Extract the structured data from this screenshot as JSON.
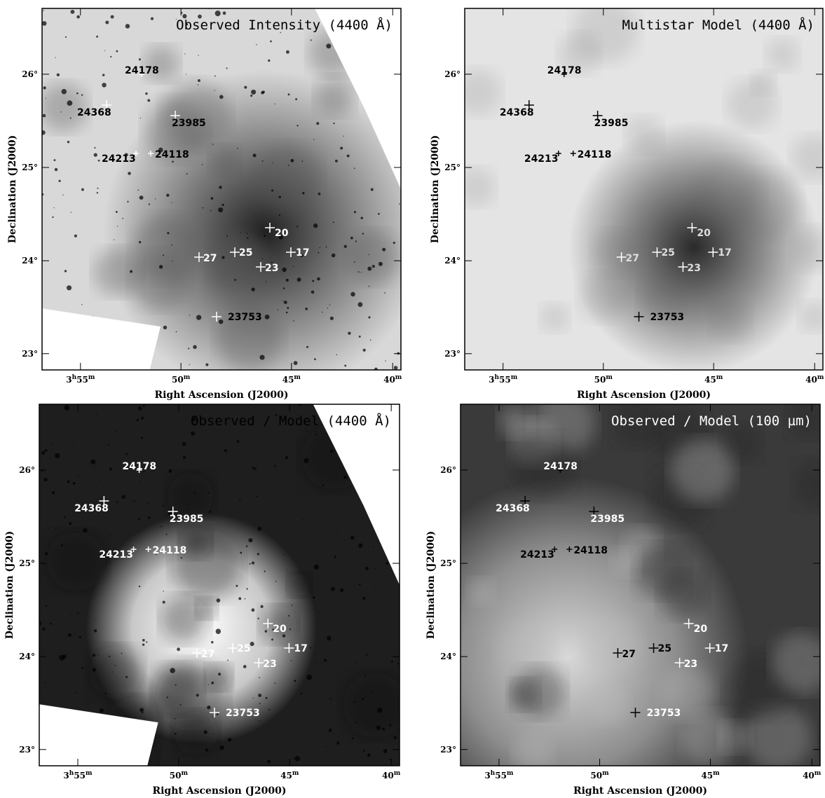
{
  "panels": [
    {
      "title": "Observed Intensity (4400 Å)",
      "x_label": "Right Ascension (J2000)",
      "y_label": "Declination (J2000)",
      "x_ticks": [
        [
          "3",
          "h",
          "55",
          "m"
        ],
        [
          "50",
          "m"
        ],
        [
          "45",
          "m"
        ],
        [
          "40",
          "m"
        ]
      ],
      "y_ticks": [
        [
          "26",
          "°"
        ],
        [
          "25",
          "°"
        ],
        [
          "24",
          "°"
        ],
        [
          "23",
          "°"
        ]
      ],
      "stars": [
        "24178",
        "24368",
        "23985",
        "24213",
        "24118",
        "20",
        "25",
        "17",
        "27",
        "23",
        "23753"
      ]
    },
    {
      "title": "Multistar Model (4400 Å)",
      "x_label": "Right Ascension (J2000)",
      "y_label": "Declination (J2000)",
      "x_ticks": [
        [
          "3",
          "h",
          "55",
          "m"
        ],
        [
          "50",
          "m"
        ],
        [
          "45",
          "m"
        ],
        [
          "40",
          "m"
        ]
      ],
      "y_ticks": [
        [
          "26",
          "°"
        ],
        [
          "25",
          "°"
        ],
        [
          "24",
          "°"
        ],
        [
          "23",
          "°"
        ]
      ],
      "stars": [
        "24178",
        "24368",
        "23985",
        "24213",
        "24118",
        "20",
        "25",
        "17",
        "27",
        "23",
        "23753"
      ]
    },
    {
      "title": "Observed / Model (4400 Å)",
      "x_label": "Right Ascension (J2000)",
      "y_label": "Declination (J2000)",
      "x_ticks": [
        [
          "3",
          "h",
          "55",
          "m"
        ],
        [
          "50",
          "m"
        ],
        [
          "45",
          "m"
        ],
        [
          "40",
          "m"
        ]
      ],
      "y_ticks": [
        [
          "26",
          "°"
        ],
        [
          "25",
          "°"
        ],
        [
          "24",
          "°"
        ],
        [
          "23",
          "°"
        ]
      ],
      "stars": [
        "24178",
        "24368",
        "23985",
        "24213",
        "24118",
        "20",
        "25",
        "17",
        "27",
        "23",
        "23753"
      ]
    },
    {
      "title": "Observed / Model (100 µm)",
      "x_label": "Right Ascension (J2000)",
      "y_label": "Declination (J2000)",
      "x_ticks": [
        [
          "3",
          "h",
          "55",
          "m"
        ],
        [
          "50",
          "m"
        ],
        [
          "45",
          "m"
        ],
        [
          "40",
          "m"
        ]
      ],
      "y_ticks": [
        [
          "26",
          "°"
        ],
        [
          "25",
          "°"
        ],
        [
          "24",
          "°"
        ],
        [
          "23",
          "°"
        ]
      ],
      "stars": [
        "24178",
        "24368",
        "23985",
        "24213",
        "24118",
        "20",
        "25",
        "17",
        "27",
        "23",
        "23753"
      ]
    }
  ]
}
